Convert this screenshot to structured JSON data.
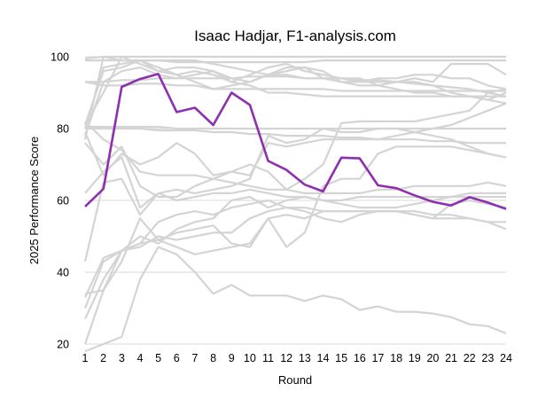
{
  "chart_data": {
    "type": "line",
    "title": "Isaac Hadjar, F1-analysis.com",
    "xlabel": "Round",
    "ylabel": "2025 Performance Score",
    "xlim": [
      1,
      24
    ],
    "ylim": [
      20,
      100
    ],
    "x_ticks": [
      1,
      2,
      3,
      4,
      5,
      6,
      7,
      8,
      9,
      10,
      11,
      12,
      13,
      14,
      15,
      16,
      17,
      18,
      19,
      20,
      21,
      22,
      23,
      24
    ],
    "y_ticks": [
      20,
      40,
      60,
      80,
      100
    ],
    "grid": "horizontal",
    "highlight_color": "#8e2fb0",
    "background_color": "#d4d4d4",
    "x": [
      1,
      2,
      3,
      4,
      5,
      6,
      7,
      8,
      9,
      10,
      11,
      12,
      13,
      14,
      15,
      16,
      17,
      18,
      19,
      20,
      21,
      22,
      23,
      24
    ],
    "highlight": {
      "values": [
        58.3,
        63.2,
        91.6,
        93.8,
        95.2,
        84.6,
        85.8,
        81.0,
        90.0,
        86.6,
        71.0,
        68.5,
        64.4,
        62.5,
        71.9,
        71.7,
        64.2,
        63.4,
        61.4,
        59.6,
        58.6,
        60.9,
        59.4,
        57.6
      ]
    },
    "background_series": [
      {
        "values": [
          99.5,
          100,
          100,
          100,
          100,
          100,
          100,
          100,
          100,
          100,
          100,
          100,
          100,
          100,
          100,
          100,
          100,
          100,
          100,
          100,
          100,
          100,
          100,
          100
        ]
      },
      {
        "values": [
          99,
          99,
          99,
          99,
          99,
          98.5,
          98.5,
          98.5,
          98.5,
          98.5,
          98.5,
          98.5,
          98.5,
          99,
          99,
          99,
          99,
          99,
          99,
          99,
          99,
          99,
          99,
          99
        ]
      },
      {
        "values": [
          93,
          93,
          93.5,
          93.5,
          94,
          94,
          94,
          94,
          94,
          94.5,
          94.5,
          94.5,
          94,
          94,
          94,
          93.5,
          93.5,
          93,
          92.5,
          92,
          91.5,
          91,
          90,
          89
        ]
      },
      {
        "values": [
          93,
          92,
          92,
          92.5,
          92.5,
          92,
          92,
          91,
          91,
          91,
          91,
          91,
          91,
          91,
          90.5,
          90.5,
          90.5,
          90.5,
          90.5,
          90.5,
          90.5,
          90.5,
          90.5,
          90.5
        ]
      },
      {
        "values": [
          80,
          97,
          98,
          99,
          97,
          95,
          93,
          91,
          92,
          93,
          95,
          97,
          97,
          96,
          93,
          93,
          93,
          93,
          94,
          93,
          98,
          98,
          98,
          95
        ]
      },
      {
        "values": [
          81,
          96,
          97,
          99,
          96,
          95,
          96,
          95,
          93,
          92,
          90,
          90,
          89.5,
          89,
          89,
          89,
          89,
          89,
          89,
          89,
          89,
          89,
          89,
          89
        ]
      },
      {
        "values": [
          81,
          90,
          100,
          98,
          96,
          97,
          97,
          96,
          94,
          93,
          95,
          96,
          97,
          94,
          94,
          93,
          94,
          94,
          95,
          95,
          94,
          94,
          92,
          91
        ]
      },
      {
        "values": [
          78,
          93,
          96,
          97,
          95,
          94,
          95,
          96,
          93,
          95,
          97,
          98,
          96,
          95,
          94,
          94,
          92,
          91,
          90,
          90,
          89,
          89,
          88,
          90
        ]
      },
      {
        "values": [
          77,
          100,
          99,
          99,
          99,
          99,
          99,
          98,
          97,
          96,
          95,
          95,
          94,
          94,
          93,
          92,
          92,
          93,
          93,
          92,
          90,
          89,
          88,
          87
        ]
      },
      {
        "values": [
          80.5,
          80.5,
          80.5,
          80.5,
          80.5,
          80,
          80,
          80,
          80,
          80,
          80,
          80,
          80,
          80,
          80,
          80,
          80,
          80,
          80,
          80,
          80,
          80,
          80,
          80
        ]
      },
      {
        "values": [
          80,
          80,
          80,
          80,
          79.5,
          79.5,
          79.5,
          79,
          79,
          78.5,
          78.5,
          78,
          78,
          78,
          77.5,
          77.5,
          77,
          77,
          77,
          76.5,
          76.5,
          76,
          76,
          76
        ]
      },
      {
        "values": [
          82,
          77,
          74,
          68,
          67,
          67,
          67,
          66,
          65,
          64,
          63,
          63,
          66,
          70,
          81.5,
          82,
          82,
          82,
          82,
          83,
          84,
          85,
          90,
          91
        ]
      },
      {
        "values": [
          79,
          67,
          73,
          70,
          72,
          76,
          73,
          67,
          68,
          67,
          76,
          75,
          76,
          77,
          77,
          77,
          77,
          78,
          79,
          80,
          81,
          83,
          85,
          87
        ]
      },
      {
        "values": [
          76,
          70,
          75,
          64,
          61,
          61,
          64,
          66,
          68,
          70,
          68,
          63,
          62,
          62,
          62,
          62,
          63,
          63,
          64,
          64,
          64,
          64,
          65,
          64
        ]
      },
      {
        "values": [
          62,
          68,
          72,
          58,
          62,
          63,
          62,
          63,
          64,
          66,
          78,
          76,
          77,
          80,
          79,
          79,
          80,
          80,
          79,
          78,
          77,
          75,
          73,
          72
        ]
      },
      {
        "values": [
          43,
          65,
          66,
          56,
          62,
          60,
          61,
          62,
          62,
          63,
          62,
          61,
          61,
          60,
          60,
          61,
          61,
          61,
          61,
          61,
          61,
          61,
          61,
          61
        ]
      },
      {
        "values": [
          34,
          35,
          46,
          50,
          48,
          52,
          54,
          55,
          60,
          61,
          58,
          60,
          61,
          60,
          59,
          58,
          58,
          58,
          59,
          60,
          61,
          62,
          62,
          62
        ]
      },
      {
        "values": [
          30,
          43,
          46,
          47,
          50,
          49,
          50,
          51,
          51,
          55,
          57,
          58,
          58,
          57,
          57,
          57,
          57,
          57,
          57,
          56,
          56,
          55,
          54,
          52
        ]
      },
      {
        "values": [
          27,
          38,
          46,
          48,
          54,
          56,
          57,
          56,
          58,
          59,
          60,
          58,
          57,
          55,
          54,
          56,
          57,
          57,
          56,
          55,
          55,
          55,
          54,
          54
        ]
      },
      {
        "values": [
          33,
          44,
          46,
          48,
          49,
          47,
          45,
          46,
          47,
          48,
          55,
          47,
          51,
          64,
          66,
          66,
          73,
          75,
          75,
          75,
          75,
          74,
          73,
          72
        ]
      },
      {
        "values": [
          20,
          35,
          43,
          55,
          49,
          51,
          52,
          53,
          48,
          47,
          55,
          56,
          55,
          57,
          57,
          57,
          57,
          57,
          56,
          55,
          59,
          60,
          59,
          58
        ]
      },
      {
        "values": [
          18,
          20,
          22,
          38,
          47,
          45,
          40,
          34,
          36.5,
          33.5,
          33.5,
          33.5,
          32,
          33.5,
          32.5,
          29.5,
          30.5,
          29,
          29,
          28.5,
          27.5,
          25.5,
          25,
          23
        ]
      }
    ]
  }
}
